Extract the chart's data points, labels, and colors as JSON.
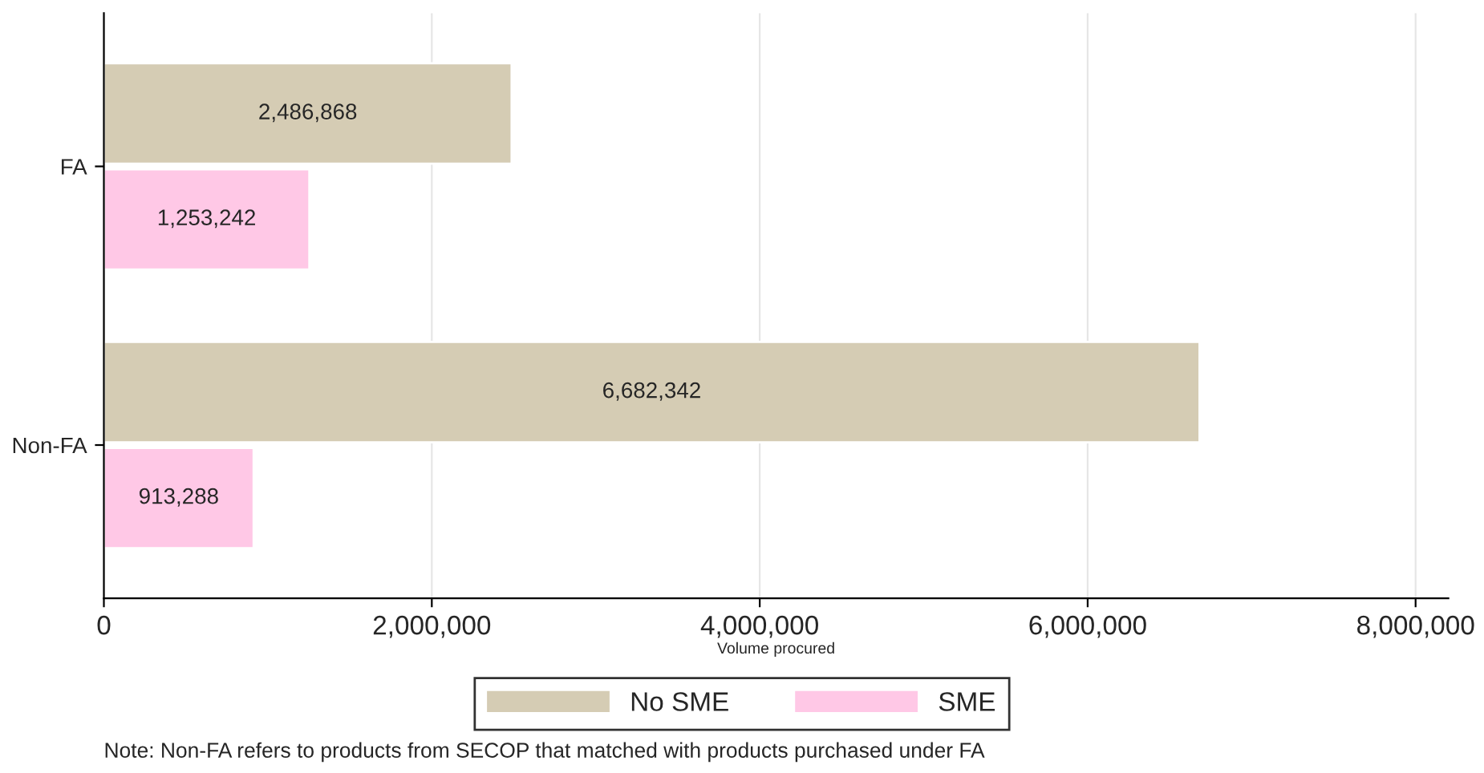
{
  "chart_data": {
    "type": "bar",
    "orientation": "horizontal",
    "categories": [
      "FA",
      "Non-FA"
    ],
    "series": [
      {
        "name": "No SME",
        "color": "#d5ccb4",
        "values": [
          2486868,
          6682342
        ]
      },
      {
        "name": "SME",
        "color": "#ffc8e6",
        "values": [
          1253242,
          913288
        ]
      }
    ],
    "xlabel": "Volume procured",
    "xlim": [
      0,
      8200000
    ],
    "xticks": [
      {
        "value": 0,
        "label": "0"
      },
      {
        "value": 2000000,
        "label": "2,000,000"
      },
      {
        "value": 4000000,
        "label": "4,000,000"
      },
      {
        "value": 6000000,
        "label": "6,000,000"
      },
      {
        "value": 8000000,
        "label": "8,000,000"
      }
    ],
    "grid": "x",
    "legend": "bottom",
    "value_labels": [
      [
        "2,486,868",
        "6,682,342"
      ],
      [
        "1,253,242",
        "913,288"
      ]
    ],
    "annotations": [
      "Note: Non-FA refers to products from SECOP that matched with products purchased under FA"
    ]
  }
}
